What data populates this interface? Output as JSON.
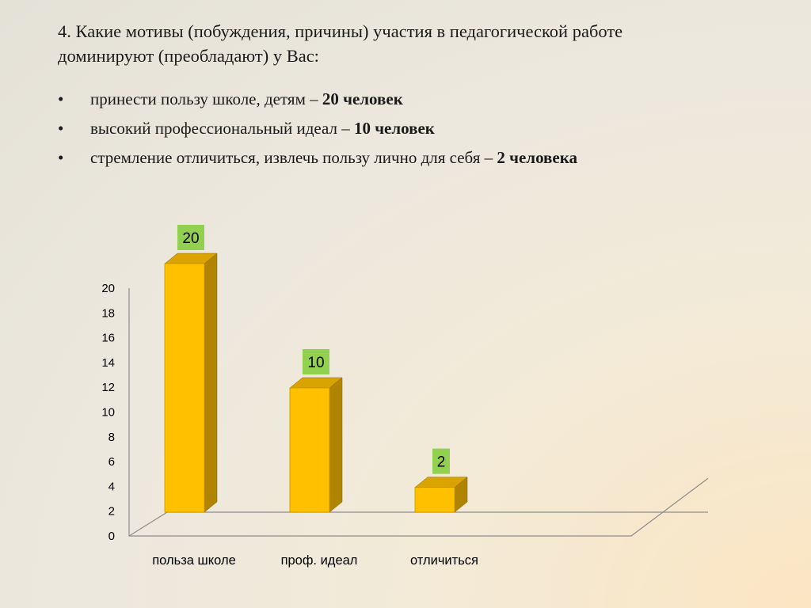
{
  "question": {
    "line1": "4. Какие мотивы (побуждения, причины) участия в педагогической работе",
    "line2": "доминируют (преобладают) у Вас:"
  },
  "bullets": [
    {
      "marker": "•",
      "text": "принести пользу школе, детям – ",
      "bold": "20 человек"
    },
    {
      "marker": "•",
      "text": "высокий профессиональный идеал – ",
      "bold": "10 человек"
    },
    {
      "marker": "•",
      "text": "стремление отличиться, извлечь пользу лично для себя – ",
      "bold": "2 человека"
    }
  ],
  "chart_data": {
    "type": "bar",
    "categories": [
      "польза школе",
      "проф. идеал",
      "отличиться"
    ],
    "values": [
      20,
      10,
      2
    ],
    "data_labels": [
      "20",
      "10",
      "2"
    ],
    "yticks": [
      "0",
      "2",
      "4",
      "6",
      "8",
      "10",
      "12",
      "14",
      "16",
      "18",
      "20"
    ],
    "ylim": [
      0,
      20
    ],
    "grid": false,
    "style": "3d-column",
    "colors": {
      "bar_front": "#ffc000",
      "bar_side": "#b08400",
      "bar_top": "#d9a300",
      "label_bg": "#92d050",
      "axis": "#8c8c8c"
    }
  }
}
